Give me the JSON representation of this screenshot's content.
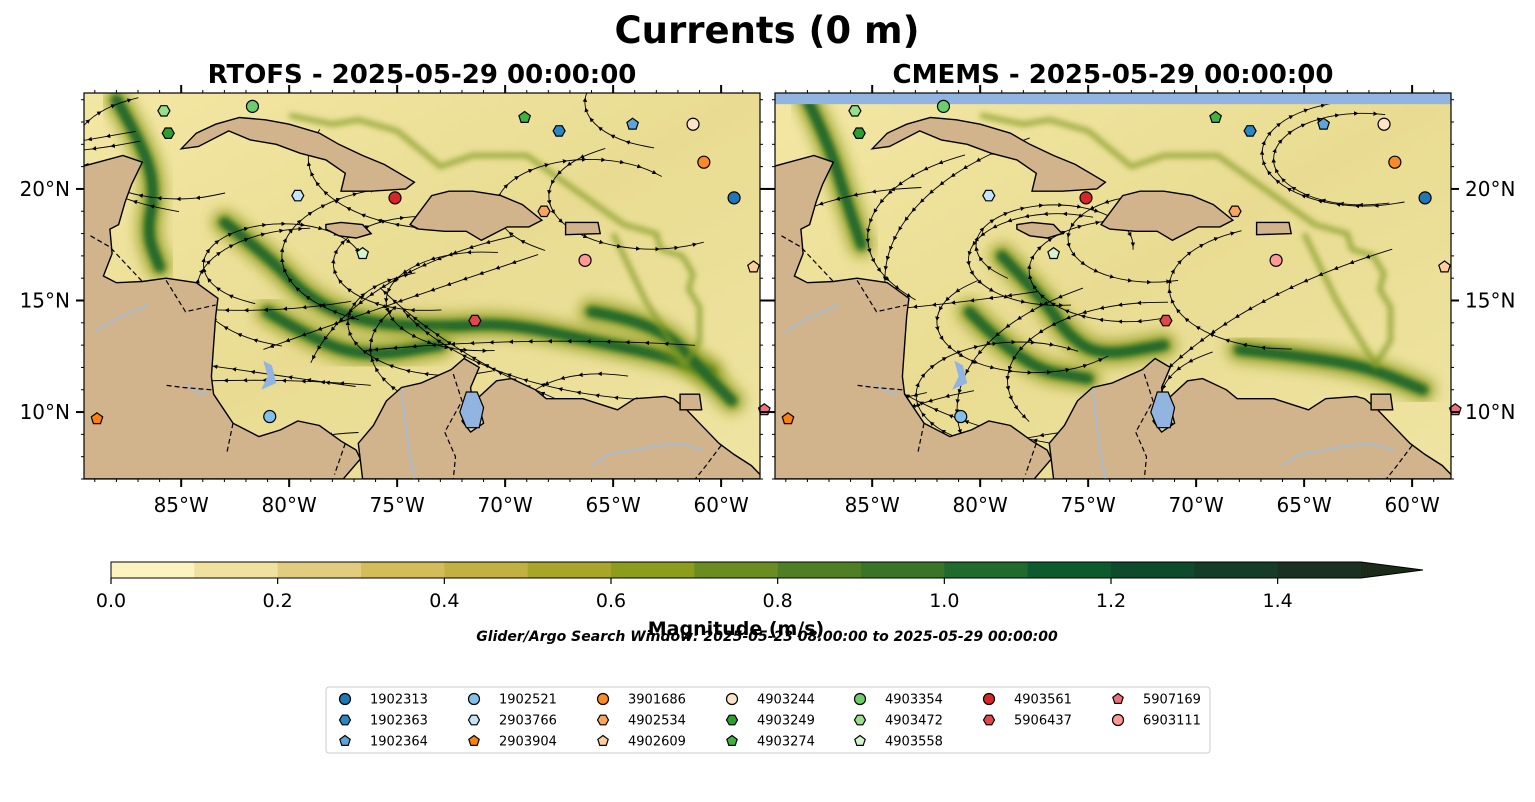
{
  "figure": {
    "title": "Currents (0 m)",
    "window_note": "Glider/Argo Search Window: 2025-05-23 08:00:00 to 2025-05-29 00:00:00"
  },
  "chart_data": [
    {
      "type": "heatmap",
      "title": "RTOFS - 2025-05-29 00:00:00",
      "xlim": [
        -89.5,
        -58.2
      ],
      "ylim": [
        7.0,
        24.3
      ],
      "x_ticks": [
        -85,
        -80,
        -75,
        -70,
        -65,
        -60
      ],
      "x_tick_labels": [
        "85°W",
        "80°W",
        "75°W",
        "70°W",
        "65°W",
        "60°W"
      ],
      "y_ticks": [
        10,
        15,
        20
      ],
      "y_tick_labels": [
        "10°N",
        "15°N",
        "20°N"
      ],
      "y_axis_side": "left",
      "floats": [
        {
          "id": "1902313",
          "lon": -59.4,
          "lat": 19.6
        },
        {
          "id": "1902363",
          "lon": -67.5,
          "lat": 22.6
        },
        {
          "id": "1902364",
          "lon": -64.1,
          "lat": 22.9
        },
        {
          "id": "1902521",
          "lon": -80.9,
          "lat": 9.8
        },
        {
          "id": "2903766",
          "lon": -79.6,
          "lat": 19.7
        },
        {
          "id": "2903904",
          "lon": -88.9,
          "lat": 9.7
        },
        {
          "id": "3901686",
          "lon": -60.8,
          "lat": 21.2
        },
        {
          "id": "4902534",
          "lon": -68.2,
          "lat": 19.0
        },
        {
          "id": "4902609",
          "lon": -58.5,
          "lat": 16.5
        },
        {
          "id": "4903244",
          "lon": -61.3,
          "lat": 22.9
        },
        {
          "id": "4903249",
          "lon": -85.6,
          "lat": 22.5
        },
        {
          "id": "4903274",
          "lon": -69.1,
          "lat": 23.2
        },
        {
          "id": "4903354",
          "lon": -81.7,
          "lat": 23.7
        },
        {
          "id": "4903472",
          "lon": -85.8,
          "lat": 23.5
        },
        {
          "id": "4903558",
          "lon": -76.6,
          "lat": 17.1
        },
        {
          "id": "4903561",
          "lon": -75.1,
          "lat": 19.6
        },
        {
          "id": "5906437",
          "lon": -71.4,
          "lat": 14.1
        },
        {
          "id": "5907169",
          "lon": -58.0,
          "lat": 10.1
        },
        {
          "id": "6903111",
          "lon": -66.3,
          "lat": 16.8
        }
      ]
    },
    {
      "type": "heatmap",
      "title": "CMEMS - 2025-05-29 00:00:00",
      "xlim": [
        -89.5,
        -58.2
      ],
      "ylim": [
        7.0,
        24.3
      ],
      "x_ticks": [
        -85,
        -80,
        -75,
        -70,
        -65,
        -60
      ],
      "x_tick_labels": [
        "85°W",
        "80°W",
        "75°W",
        "70°W",
        "65°W",
        "60°W"
      ],
      "y_ticks": [
        10,
        15,
        20
      ],
      "y_tick_labels": [
        "10°N",
        "15°N",
        "20°N"
      ],
      "y_axis_side": "right",
      "floats": [
        {
          "id": "1902313",
          "lon": -59.4,
          "lat": 19.6
        },
        {
          "id": "1902363",
          "lon": -67.5,
          "lat": 22.6
        },
        {
          "id": "1902364",
          "lon": -64.1,
          "lat": 22.9
        },
        {
          "id": "1902521",
          "lon": -80.9,
          "lat": 9.8
        },
        {
          "id": "2903766",
          "lon": -79.6,
          "lat": 19.7
        },
        {
          "id": "2903904",
          "lon": -88.9,
          "lat": 9.7
        },
        {
          "id": "3901686",
          "lon": -60.8,
          "lat": 21.2
        },
        {
          "id": "4902534",
          "lon": -68.2,
          "lat": 19.0
        },
        {
          "id": "4902609",
          "lon": -58.5,
          "lat": 16.5
        },
        {
          "id": "4903244",
          "lon": -61.3,
          "lat": 22.9
        },
        {
          "id": "4903249",
          "lon": -85.6,
          "lat": 22.5
        },
        {
          "id": "4903274",
          "lon": -69.1,
          "lat": 23.2
        },
        {
          "id": "4903354",
          "lon": -81.7,
          "lat": 23.7
        },
        {
          "id": "4903472",
          "lon": -85.8,
          "lat": 23.5
        },
        {
          "id": "4903558",
          "lon": -76.6,
          "lat": 17.1
        },
        {
          "id": "4903561",
          "lon": -75.1,
          "lat": 19.6
        },
        {
          "id": "5906437",
          "lon": -71.4,
          "lat": 14.1
        },
        {
          "id": "5907169",
          "lon": -58.0,
          "lat": 10.1
        },
        {
          "id": "6903111",
          "lon": -66.3,
          "lat": 16.8
        }
      ]
    }
  ],
  "colorbar": {
    "label": "Magnitude (m/s)",
    "min": 0.0,
    "max": 1.5,
    "step": 0.1,
    "extend": "max",
    "ticks": [
      0.0,
      0.2,
      0.4,
      0.6,
      0.8,
      1.0,
      1.2,
      1.4
    ],
    "tick_labels": [
      "0.0",
      "0.2",
      "0.4",
      "0.6",
      "0.8",
      "1.0",
      "1.2",
      "1.4"
    ],
    "colors": [
      "#fbf4c0",
      "#efe1a0",
      "#e2cc80",
      "#d3bc5a",
      "#c2b040",
      "#a8a628",
      "#8c9c1c",
      "#6a8c20",
      "#4f7f24",
      "#3a7428",
      "#1f6a2c",
      "#0d5a2e",
      "#0e4a2c",
      "#153c26",
      "#1a3020",
      "#1c2a1a"
    ]
  },
  "colors": {
    "land": "#d2b48c",
    "lake": "#92b4e0",
    "river": "#a6bcd2",
    "coast": "#000000",
    "streamline": "#000000"
  },
  "legend": {
    "placement": "bottom-center",
    "columns": [
      [
        {
          "id": "1902313",
          "color": "#1f77b4",
          "marker": "circle"
        },
        {
          "id": "1902363",
          "color": "#2b86c4",
          "marker": "hexagon"
        },
        {
          "id": "1902364",
          "color": "#5ea4d8",
          "marker": "pentagon"
        }
      ],
      [
        {
          "id": "1902521",
          "color": "#82c0ea",
          "marker": "circle"
        },
        {
          "id": "2903766",
          "color": "#c6e4f7",
          "marker": "hexagon"
        },
        {
          "id": "2903904",
          "color": "#ff7f0e",
          "marker": "pentagon"
        }
      ],
      [
        {
          "id": "3901686",
          "color": "#f98a25",
          "marker": "circle"
        },
        {
          "id": "4902534",
          "color": "#f9a55a",
          "marker": "hexagon"
        },
        {
          "id": "4902609",
          "color": "#ffcf9c",
          "marker": "pentagon"
        }
      ],
      [
        {
          "id": "4903244",
          "color": "#fde4c8",
          "marker": "circle"
        },
        {
          "id": "4903249",
          "color": "#2ca02c",
          "marker": "hexagon"
        },
        {
          "id": "4903274",
          "color": "#3fb33f",
          "marker": "pentagon"
        }
      ],
      [
        {
          "id": "4903354",
          "color": "#6ccd6c",
          "marker": "circle"
        },
        {
          "id": "4903472",
          "color": "#98df8a",
          "marker": "hexagon"
        },
        {
          "id": "4903558",
          "color": "#d4f5c9",
          "marker": "pentagon"
        }
      ],
      [
        {
          "id": "4903561",
          "color": "#d62728",
          "marker": "circle"
        },
        {
          "id": "5906437",
          "color": "#e0474a",
          "marker": "hexagon"
        }
      ],
      [
        {
          "id": "5907169",
          "color": "#f0707a",
          "marker": "pentagon"
        },
        {
          "id": "6903111",
          "color": "#ff9896",
          "marker": "circle"
        }
      ]
    ]
  }
}
